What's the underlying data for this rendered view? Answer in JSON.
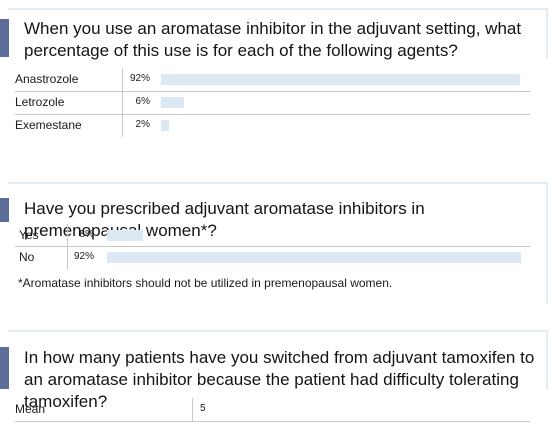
{
  "panels": [
    {
      "question": "When you use an aromatase inhibitor in the adjuvant setting, what percentage of this use is for each of the following agents?",
      "rows": [
        {
          "label": "Anastrozole",
          "value_text": "92%",
          "value": 92
        },
        {
          "label": "Letrozole",
          "value_text": "6%",
          "value": 6
        },
        {
          "label": "Exemestane",
          "value_text": "2%",
          "value": 2
        }
      ]
    },
    {
      "question": "Have you prescribed adjuvant aromatase inhibitors in premenopausal women*?",
      "rows": [
        {
          "label": "Yes",
          "value_text": "8%",
          "value": 8
        },
        {
          "label": "No",
          "value_text": "92%",
          "value": 92
        }
      ],
      "footnote": "*Aromatase inhibitors should not be utilized in premenopausal women."
    },
    {
      "question": "In how many patients have you switched from adjuvant tamoxifen to an aromatase inhibitor because the patient had difficulty tolerating tamoxifen?",
      "rows": [
        {
          "label": "Mean",
          "value_text": "5"
        }
      ]
    }
  ],
  "colors": {
    "accent": "#5c6d97",
    "bar": "#dde8f5",
    "frame": "#e3edf6",
    "divider": "#c8c8c8"
  },
  "chart_data": [
    {
      "type": "bar",
      "categories": [
        "Anastrozole",
        "Letrozole",
        "Exemestane"
      ],
      "values": [
        92,
        6,
        2
      ],
      "title": "When you use an aromatase inhibitor in the adjuvant setting, what percentage of this use is for each of the following agents?",
      "xlabel": "",
      "ylabel": "",
      "ylim": [
        0,
        100
      ]
    },
    {
      "type": "bar",
      "categories": [
        "Yes",
        "No"
      ],
      "values": [
        8,
        92
      ],
      "title": "Have you prescribed adjuvant aromatase inhibitors in premenopausal women*?",
      "xlabel": "",
      "ylabel": "",
      "ylim": [
        0,
        100
      ]
    },
    {
      "type": "table",
      "categories": [
        "Mean"
      ],
      "values": [
        5
      ],
      "title": "In how many patients have you switched from adjuvant tamoxifen to an aromatase inhibitor because the patient had difficulty tolerating tamoxifen?"
    }
  ]
}
